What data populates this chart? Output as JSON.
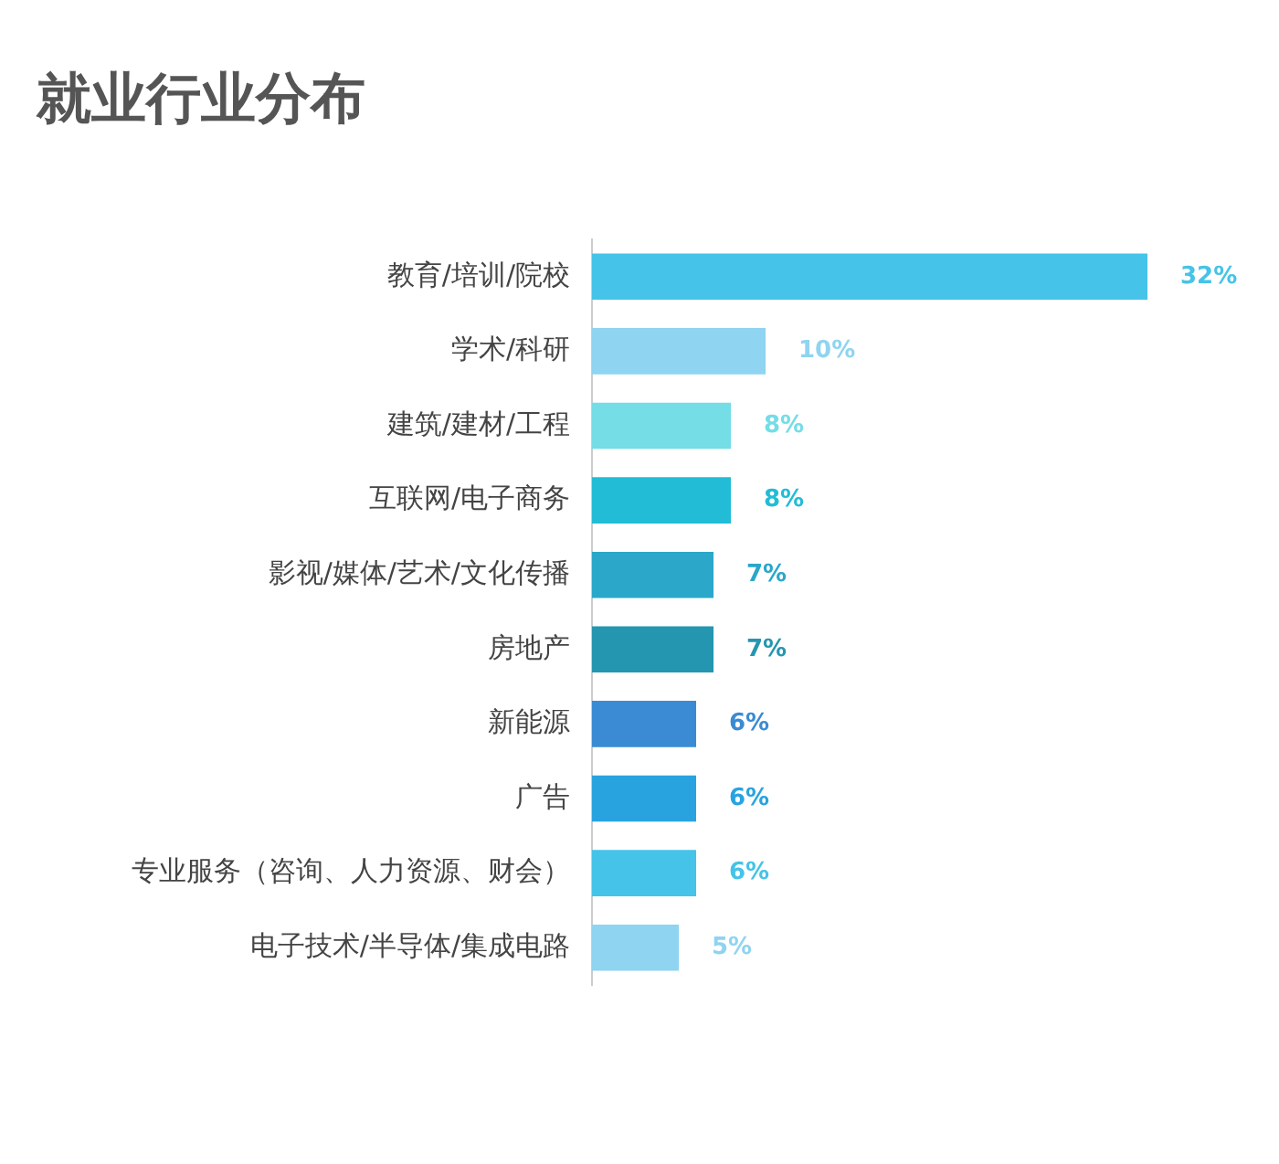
{
  "chart_data": {
    "type": "bar",
    "orientation": "horizontal",
    "title": "就业行业分布",
    "categories": [
      "教育/培训/院校",
      "学术/科研",
      "建筑/建材/工程",
      "互联网/电子商务",
      "影视/媒体/艺术/文化传播",
      "房地产",
      "新能源",
      "广告",
      "专业服务（咨询、人力资源、财会）",
      "电子技术/半导体/集成电路"
    ],
    "values": [
      32,
      10,
      8,
      8,
      7,
      7,
      6,
      6,
      6,
      5
    ],
    "value_labels": [
      "32%",
      "10%",
      "8%",
      "8%",
      "7%",
      "7%",
      "6%",
      "6%",
      "6%",
      "5%"
    ],
    "colors": [
      "#45c3e8",
      "#8fd4f0",
      "#74dde6",
      "#22bcd6",
      "#2aa7c9",
      "#2596b0",
      "#3a8bd4",
      "#29a3e0",
      "#45c3e8",
      "#8fd4f0"
    ],
    "xlim": [
      0,
      32
    ]
  }
}
